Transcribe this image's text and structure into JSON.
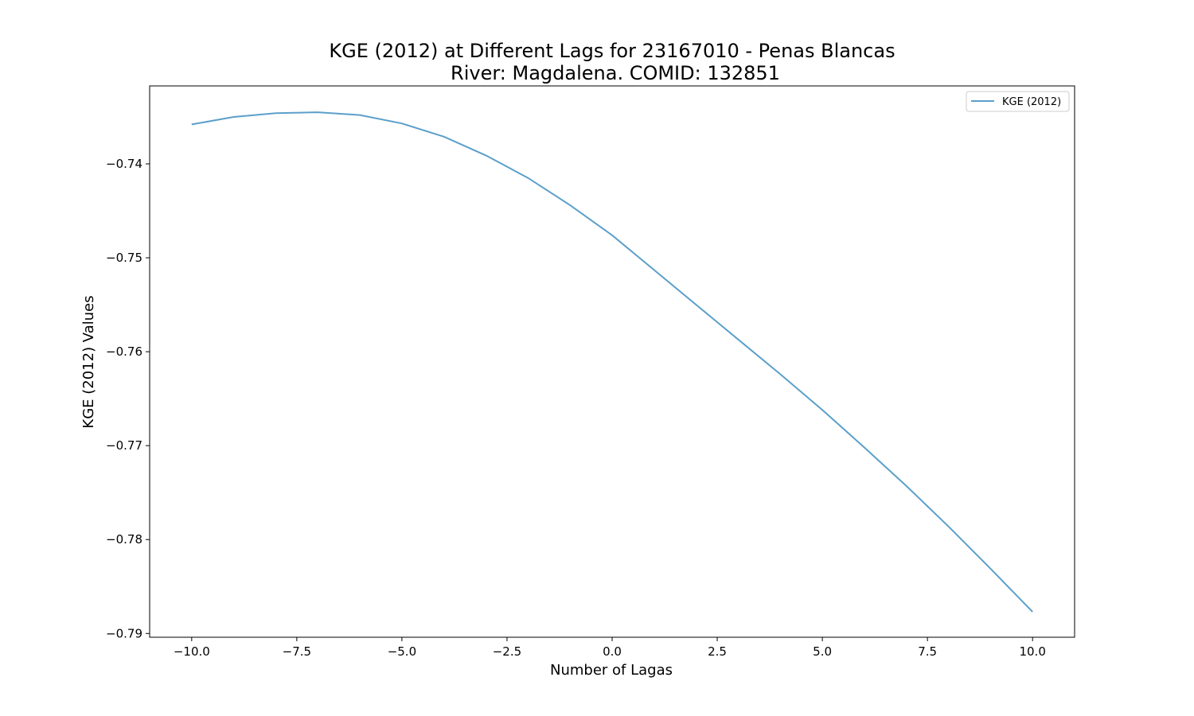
{
  "chart_data": {
    "type": "line",
    "title": "KGE (2012) at Different Lags for 23167010 - Penas Blancas",
    "subtitle": "River: Magdalena. COMID: 132851",
    "xlabel": "Number of Lagas",
    "ylabel": "KGE (2012) Values",
    "xlim": [
      -11.0,
      11.0
    ],
    "ylim": [
      -0.7904,
      -0.7317
    ],
    "x_ticks": [
      -10.0,
      -7.5,
      -5.0,
      -2.5,
      0.0,
      2.5,
      5.0,
      7.5,
      10.0
    ],
    "x_tick_labels": [
      "−10.0",
      "−7.5",
      "−5.0",
      "−2.5",
      "0.0",
      "2.5",
      "5.0",
      "7.5",
      "10.0"
    ],
    "y_ticks": [
      -0.74,
      -0.75,
      -0.76,
      -0.77,
      -0.78,
      -0.79
    ],
    "y_tick_labels": [
      "−0.74",
      "−0.75",
      "−0.76",
      "−0.77",
      "−0.78",
      "−0.79"
    ],
    "legend": "top-right",
    "grid": false,
    "series": [
      {
        "name": "KGE (2012)",
        "color": "#5b9fcb",
        "x": [
          -10,
          -9,
          -8,
          -7,
          -6,
          -5,
          -4,
          -3,
          -2,
          -1,
          0,
          1,
          2,
          3,
          4,
          5,
          6,
          7,
          8,
          9,
          10
        ],
        "values": [
          -0.7358,
          -0.735,
          -0.7346,
          -0.7345,
          -0.7348,
          -0.7357,
          -0.7371,
          -0.7391,
          -0.7415,
          -0.7444,
          -0.7476,
          -0.7513,
          -0.755,
          -0.7587,
          -0.7624,
          -0.7662,
          -0.7702,
          -0.7743,
          -0.7786,
          -0.7831,
          -0.7877
        ]
      }
    ]
  }
}
